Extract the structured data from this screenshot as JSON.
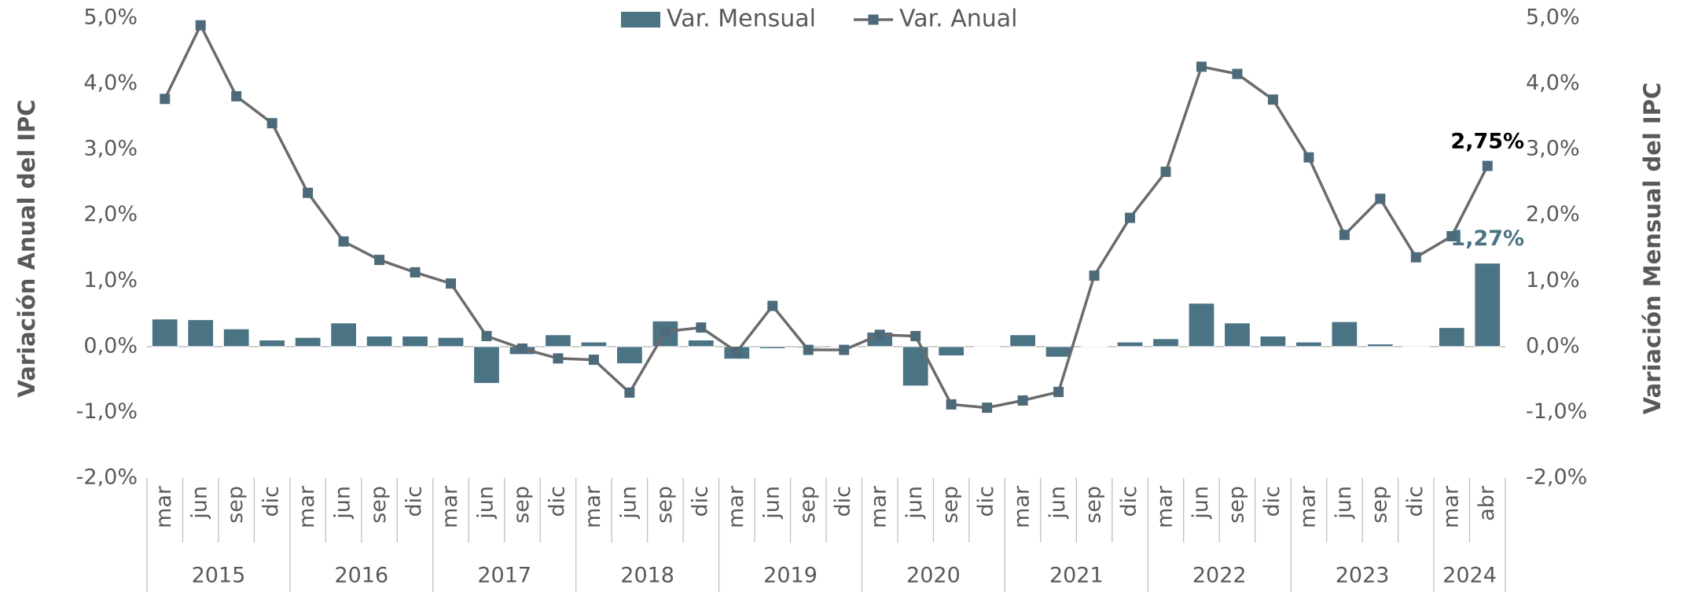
{
  "chart_data": {
    "type": "combo",
    "ylabel": "Variación Anual del IPC",
    "y2label": "Variación Mensual del IPC",
    "categories": [
      "mar",
      "jun",
      "sep",
      "dic",
      "mar",
      "jun",
      "sep",
      "dic",
      "mar",
      "jun",
      "sep",
      "dic",
      "mar",
      "jun",
      "sep",
      "dic",
      "mar",
      "jun",
      "sep",
      "dic",
      "mar",
      "jun",
      "sep",
      "dic",
      "mar",
      "jun",
      "sep",
      "dic",
      "mar",
      "jun",
      "sep",
      "dic",
      "mar",
      "jun",
      "sep",
      "dic",
      "mar",
      "abr"
    ],
    "years": [
      "2015",
      null,
      null,
      null,
      "2016",
      null,
      null,
      null,
      "2017",
      null,
      null,
      null,
      "2018",
      null,
      null,
      null,
      "2019",
      null,
      null,
      null,
      "2020",
      null,
      null,
      null,
      "2021",
      null,
      null,
      null,
      "2022",
      null,
      null,
      null,
      "2023",
      null,
      null,
      null,
      "2024",
      null
    ],
    "ylim": [
      -2,
      5
    ],
    "yticks": [
      {
        "value": -2,
        "label": "-2,0%"
      },
      {
        "value": -1,
        "label": "-1,0%"
      },
      {
        "value": 0,
        "label": "0,0%"
      },
      {
        "value": 1,
        "label": "1,0%"
      },
      {
        "value": 2,
        "label": "2,0%"
      },
      {
        "value": 3,
        "label": "3,0%"
      },
      {
        "value": 4,
        "label": "4,0%"
      },
      {
        "value": 5,
        "label": "5,0%"
      }
    ],
    "y2lim": [
      -2,
      5
    ],
    "y2ticks": [
      {
        "value": -2,
        "label": "-2,0%"
      },
      {
        "value": -1,
        "label": "-1,0%"
      },
      {
        "value": 0,
        "label": "0,0%"
      },
      {
        "value": 1,
        "label": "1,0%"
      },
      {
        "value": 2,
        "label": "2,0%"
      },
      {
        "value": 3,
        "label": "3,0%"
      },
      {
        "value": 4,
        "label": "4,0%"
      },
      {
        "value": 5,
        "label": "5,0%"
      }
    ],
    "series": [
      {
        "name": "Var. Mensual",
        "type": "bar",
        "axis": "y2",
        "color": "#4a7384",
        "label_color": "#4a7384",
        "values": [
          0.42,
          0.41,
          0.27,
          0.1,
          0.14,
          0.36,
          0.16,
          0.16,
          0.14,
          -0.56,
          -0.12,
          0.18,
          0.07,
          -0.26,
          0.39,
          0.1,
          -0.19,
          -0.03,
          -0.02,
          0.01,
          0.22,
          -0.6,
          -0.14,
          -0.01,
          0.18,
          -0.16,
          0.01,
          0.07,
          0.12,
          0.66,
          0.36,
          0.16,
          0.07,
          0.38,
          0.04,
          -0.01,
          0.29,
          1.27
        ],
        "value_labels": [
          null,
          null,
          null,
          null,
          null,
          null,
          null,
          null,
          null,
          null,
          null,
          null,
          null,
          null,
          null,
          null,
          null,
          null,
          null,
          null,
          null,
          null,
          null,
          null,
          null,
          null,
          null,
          null,
          null,
          null,
          null,
          null,
          null,
          null,
          null,
          null,
          null,
          "1,27%"
        ]
      },
      {
        "name": "Var. Anual",
        "type": "line",
        "color": "#6b6b6b",
        "marker_color": "#4d6a7a",
        "label_color": "#000000",
        "values": [
          3.77,
          4.89,
          3.81,
          3.4,
          2.34,
          1.6,
          1.32,
          1.13,
          0.96,
          0.16,
          -0.03,
          -0.18,
          -0.2,
          -0.7,
          0.23,
          0.29,
          -0.08,
          0.62,
          -0.05,
          -0.05,
          0.18,
          0.16,
          -0.88,
          -0.93,
          -0.82,
          -0.69,
          1.08,
          1.96,
          2.66,
          4.26,
          4.15,
          3.76,
          2.88,
          1.7,
          2.25,
          1.36,
          1.68,
          2.75
        ],
        "value_labels": [
          null,
          null,
          null,
          null,
          null,
          null,
          null,
          null,
          null,
          null,
          null,
          null,
          null,
          null,
          null,
          null,
          null,
          null,
          null,
          null,
          null,
          null,
          null,
          null,
          null,
          null,
          null,
          null,
          null,
          null,
          null,
          null,
          null,
          null,
          null,
          null,
          null,
          "2,75%"
        ]
      }
    ]
  }
}
